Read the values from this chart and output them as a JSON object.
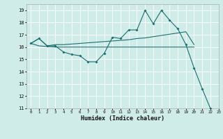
{
  "title": "",
  "xlabel": "Humidex (Indice chaleur)",
  "xlim": [
    -0.5,
    23
  ],
  "ylim": [
    11,
    19.5
  ],
  "yticks": [
    11,
    12,
    13,
    14,
    15,
    16,
    17,
    18,
    19
  ],
  "xticks": [
    0,
    1,
    2,
    3,
    4,
    5,
    6,
    7,
    8,
    9,
    10,
    11,
    12,
    13,
    14,
    15,
    16,
    17,
    18,
    19,
    20,
    21,
    22,
    23
  ],
  "bg_color": "#d0ece8",
  "grid_color": "#ffffff",
  "line_color": "#1a6e6e",
  "line1_x": [
    0,
    1,
    2,
    3,
    4,
    5,
    6,
    7,
    8,
    9,
    10,
    11,
    12,
    13,
    14,
    15,
    16,
    17,
    18,
    19,
    20,
    21,
    22
  ],
  "line1_y": [
    16.3,
    16.7,
    16.1,
    16.1,
    15.6,
    15.4,
    15.3,
    14.8,
    14.8,
    15.5,
    16.8,
    16.7,
    17.4,
    17.4,
    19.0,
    17.9,
    19.0,
    18.2,
    17.5,
    16.2,
    14.3,
    12.6,
    11.0
  ],
  "line2_x": [
    0,
    1,
    2,
    3,
    4,
    5,
    6,
    7,
    8,
    9,
    10,
    11,
    12,
    13,
    14,
    15,
    16,
    17,
    18,
    19,
    20
  ],
  "line2_y": [
    16.3,
    16.7,
    16.1,
    16.2,
    16.2,
    16.25,
    16.3,
    16.35,
    16.4,
    16.45,
    16.5,
    16.55,
    16.6,
    16.7,
    16.75,
    16.85,
    16.95,
    17.05,
    17.15,
    17.25,
    16.2
  ],
  "line3_x": [
    0,
    1,
    2,
    3,
    4,
    5,
    6,
    7,
    8,
    9,
    10,
    11,
    12,
    13,
    14,
    15,
    16,
    17,
    18,
    19,
    20
  ],
  "line3_y": [
    16.3,
    16.1,
    16.05,
    16.0,
    16.0,
    16.0,
    16.0,
    16.0,
    16.0,
    16.0,
    16.0,
    16.0,
    16.0,
    16.0,
    16.0,
    16.0,
    16.0,
    16.0,
    16.0,
    16.0,
    16.0
  ]
}
